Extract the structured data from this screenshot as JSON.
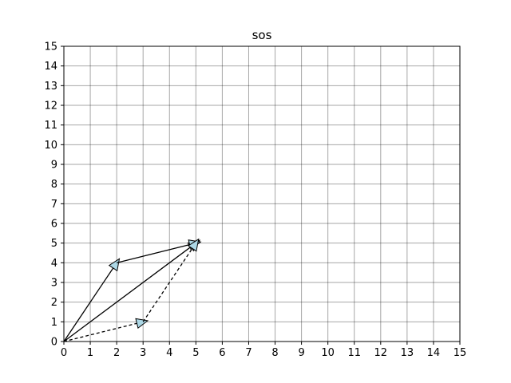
{
  "chart_data": {
    "type": "vector-plot",
    "title": "sos",
    "xlabel": "",
    "ylabel": "",
    "xlim": [
      0,
      15
    ],
    "ylim": [
      0,
      15
    ],
    "x_ticks": [
      "0",
      "1",
      "2",
      "3",
      "4",
      "5",
      "6",
      "7",
      "8",
      "9",
      "10",
      "11",
      "12",
      "13",
      "14",
      "15"
    ],
    "y_ticks": [
      "0",
      "1",
      "2",
      "3",
      "4",
      "5",
      "6",
      "7",
      "8",
      "9",
      "10",
      "11",
      "12",
      "13",
      "14",
      "15"
    ],
    "grid": true,
    "arrowhead_fill": "#add8e6",
    "line_color": "#000000",
    "series": [
      {
        "from": [
          0,
          0
        ],
        "to": [
          2,
          4
        ],
        "style": "solid"
      },
      {
        "from": [
          0,
          0
        ],
        "to": [
          5,
          5
        ],
        "style": "solid"
      },
      {
        "from": [
          2,
          4
        ],
        "to": [
          5,
          5
        ],
        "style": "solid"
      },
      {
        "from": [
          0,
          0
        ],
        "to": [
          3,
          1
        ],
        "style": "dashed"
      },
      {
        "from": [
          3,
          1
        ],
        "to": [
          5,
          5
        ],
        "style": "dashed"
      }
    ]
  }
}
